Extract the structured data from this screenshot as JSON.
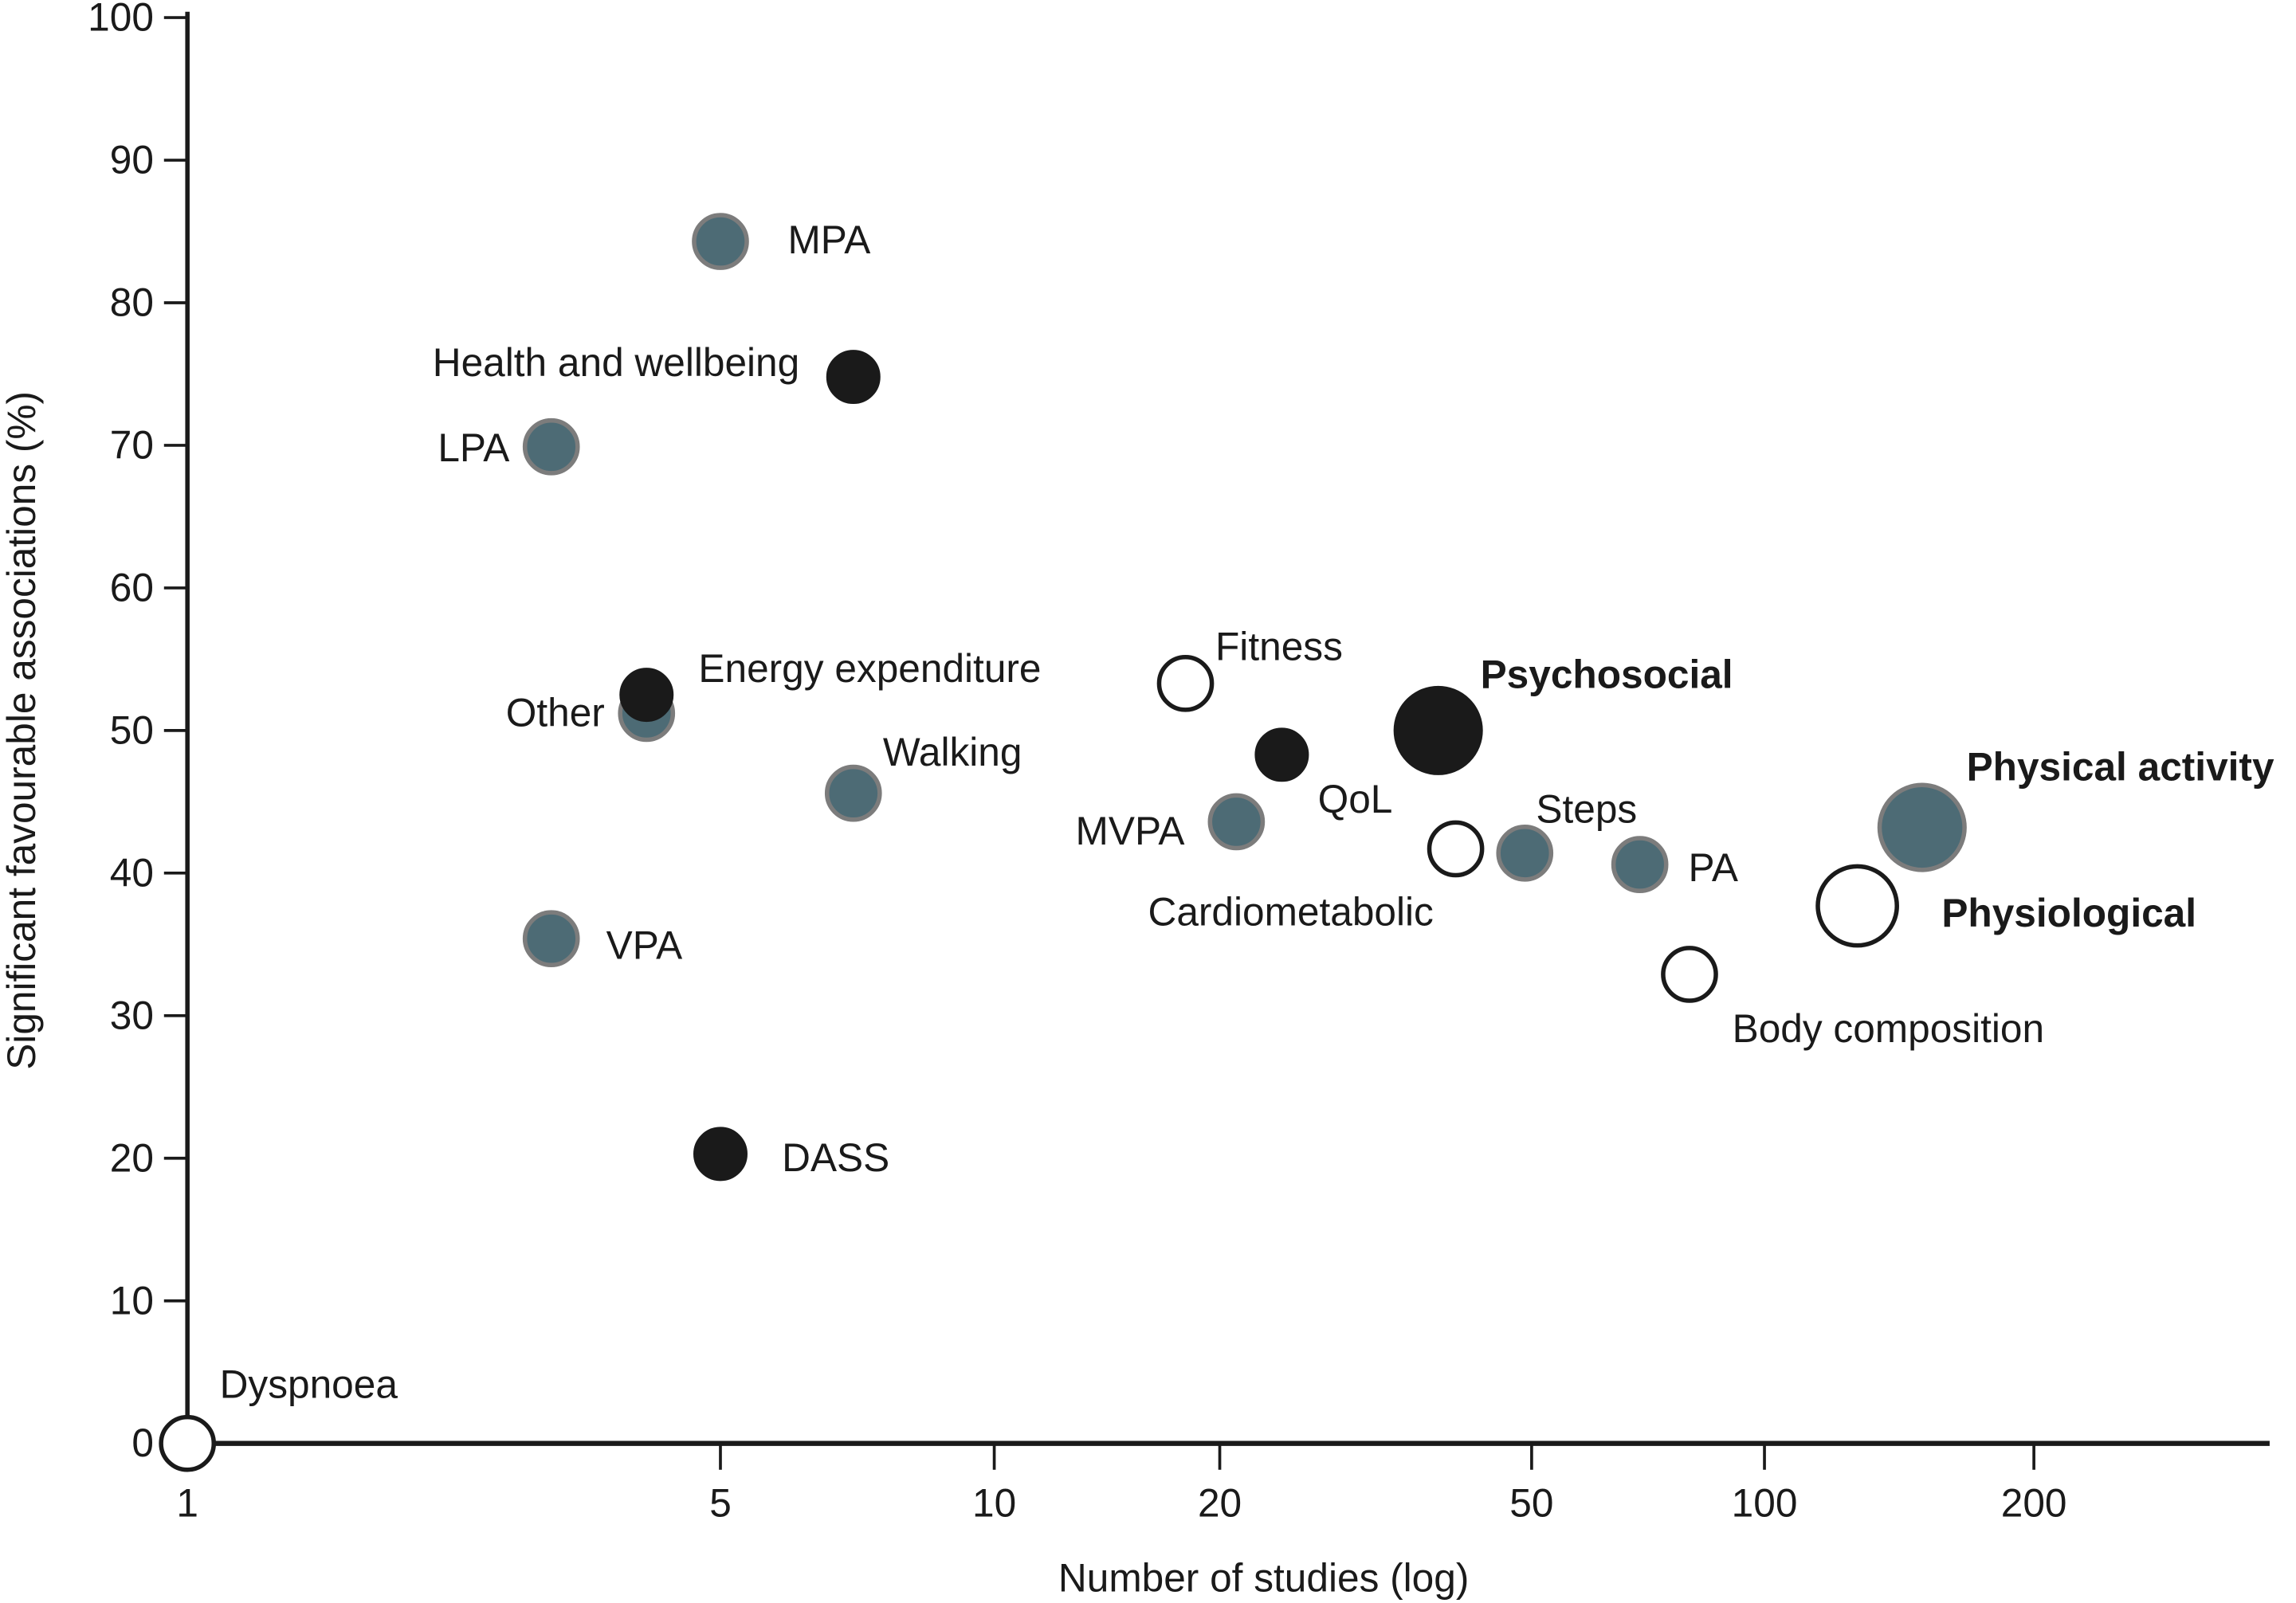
{
  "chart_data": {
    "type": "scatter",
    "title": "",
    "xlabel": "Number of studies (log)",
    "ylabel": "Significant favourable associations (%)",
    "x_scale": "log",
    "x_ticks": [
      1,
      5,
      10,
      20,
      50,
      100,
      200
    ],
    "y_ticks": [
      0,
      10,
      20,
      30,
      40,
      50,
      60,
      70,
      80,
      90,
      100
    ],
    "ylim": [
      0,
      100
    ],
    "grid": false,
    "colors": {
      "physical_activity": "#4d6b75",
      "psychosocial": "#1a1a1a",
      "physiological": "#ffffff"
    },
    "points": [
      {
        "label": "Dyspnoea",
        "x": 1,
        "y": 0,
        "group": "physiological",
        "bold": false
      },
      {
        "label": "MPA",
        "x": 5,
        "y": 84.3,
        "group": "physical_activity",
        "bold": false
      },
      {
        "label": "Health and wellbeing",
        "x": 7,
        "y": 74.8,
        "group": "psychosocial",
        "bold": false
      },
      {
        "label": "LPA",
        "x": 3,
        "y": 69.9,
        "group": "physical_activity",
        "bold": false
      },
      {
        "label": "Energy expenditure",
        "x": 4,
        "y": 51.2,
        "group": "physical_activity",
        "bold": false
      },
      {
        "label": "Other",
        "x": 4,
        "y": 52.5,
        "group": "psychosocial",
        "bold": false
      },
      {
        "label": "Walking",
        "x": 7,
        "y": 45.6,
        "group": "physical_activity",
        "bold": false
      },
      {
        "label": "VPA",
        "x": 3,
        "y": 35.4,
        "group": "physical_activity",
        "bold": false
      },
      {
        "label": "DASS",
        "x": 5,
        "y": 20.3,
        "group": "psychosocial",
        "bold": false
      },
      {
        "label": "Fitness",
        "x": 18,
        "y": 53.3,
        "group": "physiological",
        "bold": false
      },
      {
        "label": "MVPA",
        "x": 21,
        "y": 43.6,
        "group": "physical_activity",
        "bold": false
      },
      {
        "label": "QoL",
        "x": 24,
        "y": 48.3,
        "group": "psychosocial",
        "bold": false
      },
      {
        "label": "Psychosocial",
        "x": 38,
        "y": 50.0,
        "group": "psychosocial",
        "bold": true
      },
      {
        "label": "Cardiometabolic",
        "x": 40,
        "y": 41.7,
        "group": "physiological",
        "bold": false
      },
      {
        "label": "Steps",
        "x": 49,
        "y": 41.4,
        "group": "physical_activity",
        "bold": false
      },
      {
        "label": "PA",
        "x": 69,
        "y": 40.6,
        "group": "physical_activity",
        "bold": false
      },
      {
        "label": "Body composition",
        "x": 80,
        "y": 32.9,
        "group": "physiological",
        "bold": false
      },
      {
        "label": "Physiological",
        "x": 127,
        "y": 37.7,
        "group": "physiological",
        "bold": true
      },
      {
        "label": "Physical activity",
        "x": 150,
        "y": 43.2,
        "group": "physical_activity",
        "bold": true
      }
    ]
  }
}
